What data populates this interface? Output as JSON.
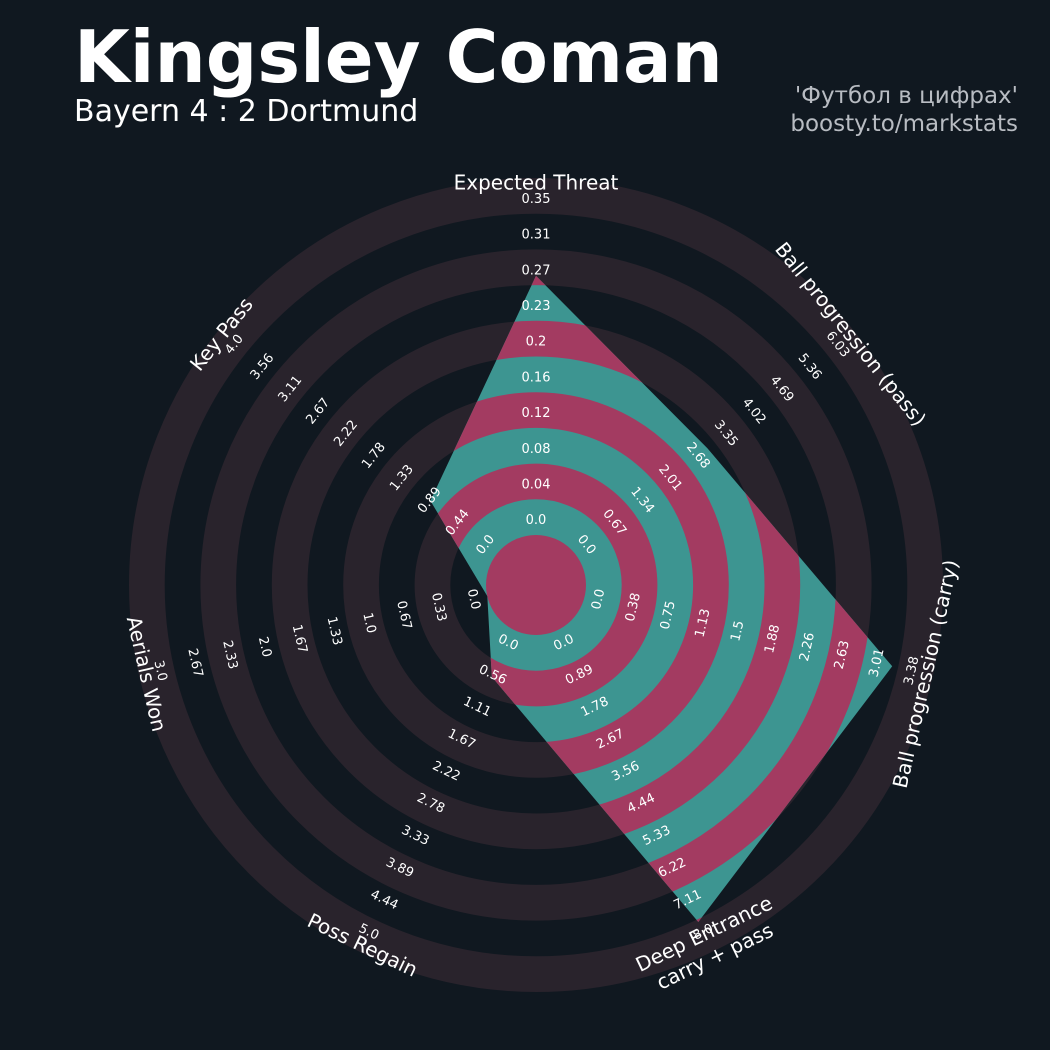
{
  "header": {
    "title": "Kingsley Coman",
    "subtitle": "Bayern 4 : 2 Dortmund",
    "credit_line1": "'Футбол в цифрах'",
    "credit_line2": "boosty.to/markstats"
  },
  "colors": {
    "background": "#101820",
    "ring_band": "#29232c",
    "player_fill": "#3d9591",
    "ring_overlay": "#a33b61",
    "text": "#ffffff"
  },
  "chart_data": {
    "type": "radar",
    "title": "Kingsley Coman",
    "subtitle": "Bayern 4 : 2 Dortmund",
    "player": "Kingsley Coman",
    "parameters": [
      {
        "label": "Expected Threat",
        "label_lines": [
          "Expected Threat"
        ],
        "min": 0.0,
        "max": 0.35,
        "value": 0.28,
        "ticks": [
          "0.0",
          "0.04",
          "0.08",
          "0.12",
          "0.16",
          "0.2",
          "0.23",
          "0.27",
          "0.31",
          "0.35"
        ]
      },
      {
        "label": "Ball progression (pass)",
        "label_lines": [
          "Ball progression (pass)"
        ],
        "min": 0.0,
        "max": 6.7,
        "value": 3.5,
        "ticks": [
          "0.0",
          "0.67",
          "1.34",
          "2.01",
          "2.68",
          "3.35",
          "4.02",
          "4.69",
          "5.36",
          "6.03"
        ]
      },
      {
        "label": "Ball progression (carry)",
        "label_lines": [
          "Ball progression (carry)"
        ],
        "min": 0.0,
        "max": 3.75,
        "value": 3.65,
        "ticks": [
          "0.0",
          "0.38",
          "0.75",
          "1.13",
          "1.5",
          "1.88",
          "2.26",
          "2.63",
          "3.01",
          "3.38"
        ]
      },
      {
        "label": "Deep Entrance carry + pass",
        "label_lines": [
          "Deep Entrance",
          "carry + pass"
        ],
        "min": 0.0,
        "max": 8.0,
        "value": 8.0,
        "ticks": [
          "0.0",
          "0.89",
          "1.78",
          "2.67",
          "3.56",
          "4.44",
          "5.33",
          "6.22",
          "7.11",
          "8.0"
        ]
      },
      {
        "label": "Poss Regain",
        "label_lines": [
          "Poss Regain"
        ],
        "min": 0.0,
        "max": 5.0,
        "value": 0.8,
        "ticks": [
          "0.0",
          "0.56",
          "1.11",
          "1.67",
          "2.22",
          "2.78",
          "3.33",
          "3.89",
          "4.44",
          "5.0"
        ]
      },
      {
        "label": "Aerials Won",
        "label_lines": [
          "Aerials Won"
        ],
        "min": 0.0,
        "max": 3.0,
        "value": 0.0,
        "ticks": [
          "0.0",
          "0.33",
          "0.67",
          "1.0",
          "1.33",
          "1.67",
          "2.0",
          "2.33",
          "2.67",
          "3.0"
        ]
      },
      {
        "label": "Key Pass",
        "label_lines": [
          "Key Pass"
        ],
        "min": 0.0,
        "max": 4.0,
        "value": 1.05,
        "ticks": [
          "0.0",
          "0.44",
          "0.89",
          "1.33",
          "1.78",
          "2.22",
          "2.67",
          "3.11",
          "3.56",
          "4.0"
        ]
      }
    ],
    "rings": 10
  }
}
